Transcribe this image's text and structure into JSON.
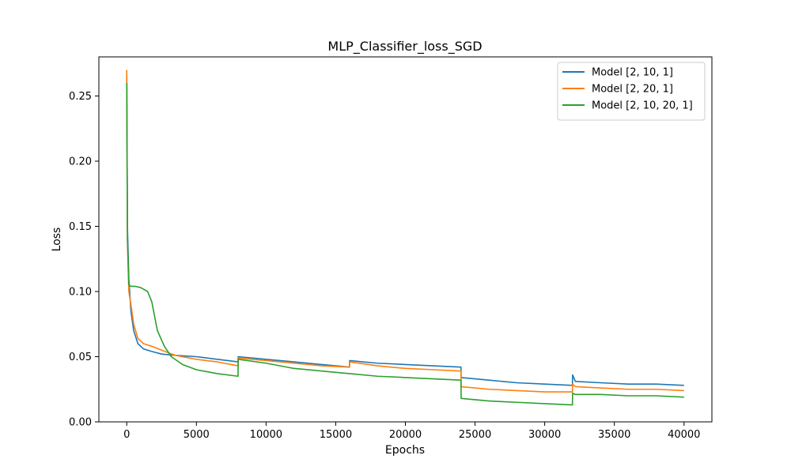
{
  "chart_data": {
    "type": "line",
    "title": "MLP_Classifier_loss_SGD",
    "xlabel": "Epochs",
    "ylabel": "Loss",
    "xlim": [
      -2000,
      42000
    ],
    "ylim": [
      0.0,
      0.28
    ],
    "xticks": [
      0,
      5000,
      10000,
      15000,
      20000,
      25000,
      30000,
      35000,
      40000
    ],
    "yticks": [
      0.0,
      0.05,
      0.1,
      0.15,
      0.2,
      0.25
    ],
    "xtick_labels": [
      "0",
      "5000",
      "10000",
      "15000",
      "20000",
      "25000",
      "30000",
      "35000",
      "40000"
    ],
    "ytick_labels": [
      "0.00",
      "0.05",
      "0.10",
      "0.15",
      "0.20",
      "0.25"
    ],
    "grid": false,
    "legend_position": "top-right",
    "series": [
      {
        "name": "Model [2, 10, 1]",
        "color": "#1f77b4",
        "x": [
          0,
          50,
          150,
          300,
          500,
          800,
          1200,
          1800,
          2500,
          3500,
          5000,
          6500,
          7990,
          8000,
          10000,
          12000,
          14000,
          15990,
          16000,
          18000,
          20000,
          22000,
          23990,
          24000,
          26000,
          28000,
          30000,
          31990,
          32000,
          32200,
          34000,
          36000,
          38000,
          40000
        ],
        "y": [
          0.265,
          0.15,
          0.11,
          0.085,
          0.07,
          0.06,
          0.056,
          0.054,
          0.052,
          0.051,
          0.05,
          0.048,
          0.046,
          0.05,
          0.048,
          0.046,
          0.044,
          0.042,
          0.047,
          0.045,
          0.044,
          0.043,
          0.042,
          0.034,
          0.032,
          0.03,
          0.029,
          0.028,
          0.036,
          0.031,
          0.03,
          0.029,
          0.029,
          0.028
        ]
      },
      {
        "name": "Model [2, 20, 1]",
        "color": "#ff7f0e",
        "x": [
          0,
          50,
          150,
          300,
          500,
          800,
          1200,
          1800,
          2500,
          3500,
          5000,
          6500,
          7990,
          8000,
          10000,
          12000,
          14000,
          15990,
          16000,
          18000,
          20000,
          22000,
          23990,
          24000,
          26000,
          28000,
          30000,
          31990,
          32000,
          32200,
          34000,
          36000,
          38000,
          40000
        ],
        "y": [
          0.27,
          0.14,
          0.1,
          0.09,
          0.075,
          0.064,
          0.06,
          0.058,
          0.055,
          0.051,
          0.048,
          0.046,
          0.043,
          0.049,
          0.047,
          0.045,
          0.043,
          0.042,
          0.046,
          0.043,
          0.041,
          0.04,
          0.039,
          0.027,
          0.025,
          0.024,
          0.023,
          0.023,
          0.029,
          0.027,
          0.026,
          0.025,
          0.025,
          0.024
        ]
      },
      {
        "name": "Model [2, 10, 20, 1]",
        "color": "#2ca02c",
        "x": [
          0,
          50,
          150,
          300,
          600,
          1000,
          1500,
          1800,
          2200,
          2700,
          3200,
          4000,
          5000,
          6500,
          7990,
          8000,
          10000,
          12000,
          14000,
          15990,
          16000,
          18000,
          20000,
          22000,
          23990,
          24000,
          26000,
          28000,
          30000,
          31990,
          32000,
          32200,
          34000,
          36000,
          38000,
          40000
        ],
        "y": [
          0.26,
          0.14,
          0.105,
          0.104,
          0.104,
          0.103,
          0.1,
          0.092,
          0.07,
          0.058,
          0.05,
          0.044,
          0.04,
          0.037,
          0.035,
          0.048,
          0.045,
          0.041,
          0.039,
          0.037,
          0.037,
          0.035,
          0.034,
          0.033,
          0.032,
          0.018,
          0.016,
          0.015,
          0.014,
          0.013,
          0.022,
          0.021,
          0.021,
          0.02,
          0.02,
          0.019
        ]
      }
    ]
  }
}
